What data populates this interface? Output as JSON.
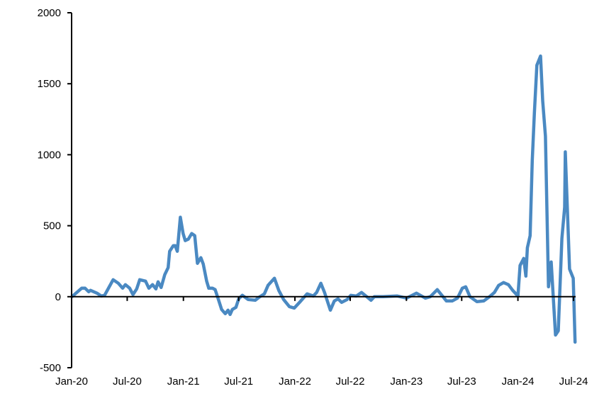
{
  "chart_data": {
    "type": "line",
    "title": "",
    "xlabel": "",
    "ylabel": "",
    "ylim": [
      -500,
      2000
    ],
    "xlim": [
      "2020-01-01",
      "2024-07-01"
    ],
    "grid": false,
    "yticks": [
      -500,
      0,
      500,
      1000,
      1500,
      2000
    ],
    "xticks": [
      {
        "date": "2020-01-01",
        "label": "Jan-20"
      },
      {
        "date": "2020-07-01",
        "label": "Jul-20"
      },
      {
        "date": "2021-01-01",
        "label": "Jan-21"
      },
      {
        "date": "2021-07-01",
        "label": "Jul-21"
      },
      {
        "date": "2022-01-01",
        "label": "Jan-22"
      },
      {
        "date": "2022-07-01",
        "label": "Jul-22"
      },
      {
        "date": "2023-01-01",
        "label": "Jan-23"
      },
      {
        "date": "2023-07-01",
        "label": "Jul-23"
      },
      {
        "date": "2024-01-01",
        "label": "Jan-24"
      },
      {
        "date": "2024-07-01",
        "label": "Jul-24"
      }
    ],
    "colors": {
      "line": "#4a89c2",
      "axis": "#000000"
    },
    "series": [
      {
        "points": [
          [
            "2020-01-02",
            0
          ],
          [
            "2020-02-03",
            60
          ],
          [
            "2020-02-14",
            60
          ],
          [
            "2020-02-26",
            35
          ],
          [
            "2020-03-03",
            45
          ],
          [
            "2020-03-24",
            25
          ],
          [
            "2020-04-07",
            5
          ],
          [
            "2020-04-18",
            10
          ],
          [
            "2020-05-16",
            120
          ],
          [
            "2020-06-02",
            95
          ],
          [
            "2020-06-16",
            60
          ],
          [
            "2020-06-25",
            85
          ],
          [
            "2020-07-09",
            60
          ],
          [
            "2020-07-20",
            15
          ],
          [
            "2020-08-01",
            55
          ],
          [
            "2020-08-11",
            120
          ],
          [
            "2020-08-30",
            110
          ],
          [
            "2020-09-10",
            60
          ],
          [
            "2020-09-22",
            85
          ],
          [
            "2020-10-03",
            55
          ],
          [
            "2020-10-10",
            105
          ],
          [
            "2020-10-20",
            65
          ],
          [
            "2020-11-01",
            155
          ],
          [
            "2020-11-12",
            205
          ],
          [
            "2020-11-17",
            320
          ],
          [
            "2020-11-29",
            360
          ],
          [
            "2020-12-05",
            360
          ],
          [
            "2020-12-12",
            320
          ],
          [
            "2020-12-22",
            560
          ],
          [
            "2020-12-31",
            445
          ],
          [
            "2021-01-07",
            395
          ],
          [
            "2021-01-17",
            405
          ],
          [
            "2021-01-28",
            445
          ],
          [
            "2021-02-07",
            430
          ],
          [
            "2021-02-16",
            235
          ],
          [
            "2021-02-27",
            275
          ],
          [
            "2021-03-07",
            230
          ],
          [
            "2021-03-18",
            110
          ],
          [
            "2021-03-25",
            60
          ],
          [
            "2021-04-06",
            60
          ],
          [
            "2021-04-15",
            50
          ],
          [
            "2021-04-25",
            -15
          ],
          [
            "2021-05-06",
            -90
          ],
          [
            "2021-05-18",
            -120
          ],
          [
            "2021-05-27",
            -95
          ],
          [
            "2021-06-03",
            -125
          ],
          [
            "2021-06-10",
            -90
          ],
          [
            "2021-06-22",
            -75
          ],
          [
            "2021-07-01",
            -15
          ],
          [
            "2021-07-13",
            10
          ],
          [
            "2021-08-01",
            -20
          ],
          [
            "2021-08-24",
            -25
          ],
          [
            "2021-09-05",
            -5
          ],
          [
            "2021-09-23",
            20
          ],
          [
            "2021-10-05",
            80
          ],
          [
            "2021-10-26",
            130
          ],
          [
            "2021-11-09",
            45
          ],
          [
            "2021-11-25",
            -20
          ],
          [
            "2021-12-14",
            -70
          ],
          [
            "2021-12-30",
            -80
          ],
          [
            "2022-01-16",
            -40
          ],
          [
            "2022-02-10",
            20
          ],
          [
            "2022-03-02",
            5
          ],
          [
            "2022-03-13",
            30
          ],
          [
            "2022-03-27",
            95
          ],
          [
            "2022-04-08",
            30
          ],
          [
            "2022-04-27",
            -95
          ],
          [
            "2022-05-10",
            -30
          ],
          [
            "2022-05-22",
            -15
          ],
          [
            "2022-06-03",
            -40
          ],
          [
            "2022-06-21",
            -20
          ],
          [
            "2022-07-03",
            10
          ],
          [
            "2022-07-21",
            5
          ],
          [
            "2022-08-07",
            30
          ],
          [
            "2022-08-24",
            0
          ],
          [
            "2022-09-07",
            -25
          ],
          [
            "2022-09-18",
            0
          ],
          [
            "2022-10-16",
            0
          ],
          [
            "2022-12-02",
            5
          ],
          [
            "2023-01-02",
            -10
          ],
          [
            "2023-02-03",
            25
          ],
          [
            "2023-03-04",
            -10
          ],
          [
            "2023-03-20",
            0
          ],
          [
            "2023-04-12",
            50
          ],
          [
            "2023-05-12",
            -30
          ],
          [
            "2023-05-31",
            -30
          ],
          [
            "2023-06-17",
            -10
          ],
          [
            "2023-07-03",
            60
          ],
          [
            "2023-07-14",
            70
          ],
          [
            "2023-07-28",
            0
          ],
          [
            "2023-08-20",
            -35
          ],
          [
            "2023-09-11",
            -30
          ],
          [
            "2023-09-30",
            0
          ],
          [
            "2023-10-16",
            30
          ],
          [
            "2023-10-30",
            80
          ],
          [
            "2023-11-15",
            100
          ],
          [
            "2023-12-01",
            85
          ],
          [
            "2023-12-15",
            45
          ],
          [
            "2024-01-01",
            5
          ],
          [
            "2024-01-08",
            220
          ],
          [
            "2024-01-20",
            270
          ],
          [
            "2024-01-27",
            145
          ],
          [
            "2024-02-01",
            345
          ],
          [
            "2024-02-10",
            430
          ],
          [
            "2024-02-17",
            960
          ],
          [
            "2024-02-24",
            1295
          ],
          [
            "2024-03-03",
            1630
          ],
          [
            "2024-03-15",
            1695
          ],
          [
            "2024-03-22",
            1380
          ],
          [
            "2024-03-31",
            1130
          ],
          [
            "2024-04-10",
            70
          ],
          [
            "2024-04-19",
            245
          ],
          [
            "2024-05-03",
            -270
          ],
          [
            "2024-05-12",
            -240
          ],
          [
            "2024-05-24",
            410
          ],
          [
            "2024-06-02",
            630
          ],
          [
            "2024-06-04",
            1020
          ],
          [
            "2024-06-18",
            195
          ],
          [
            "2024-06-30",
            130
          ],
          [
            "2024-07-06",
            -320
          ]
        ]
      }
    ]
  }
}
